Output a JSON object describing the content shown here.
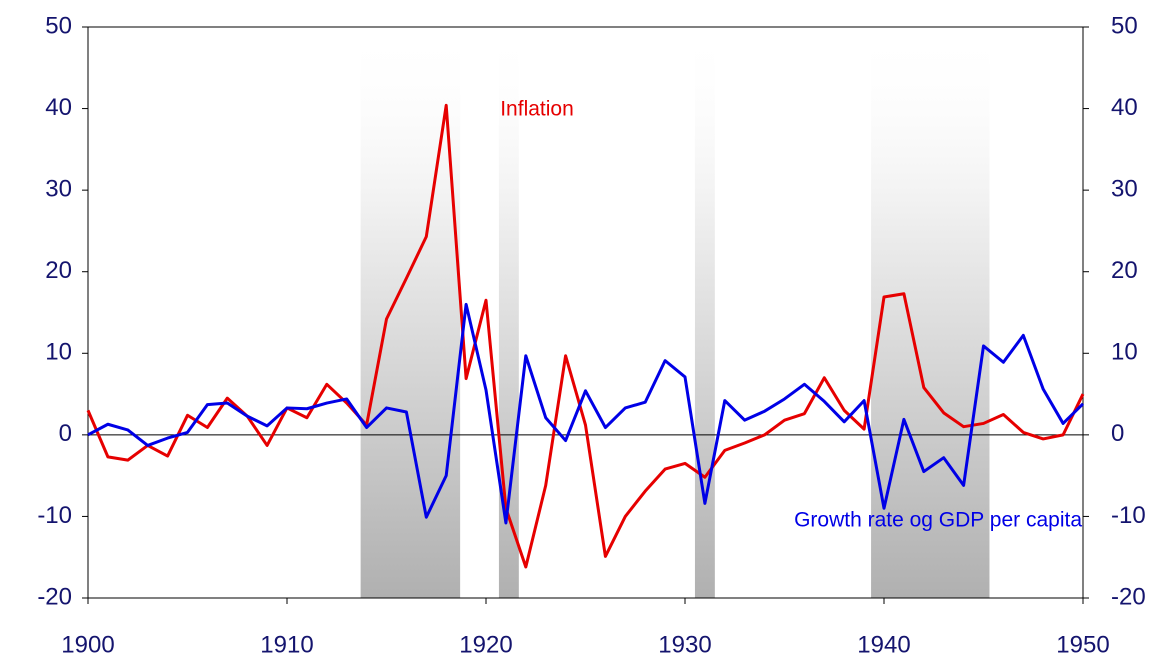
{
  "chart_data": {
    "type": "line",
    "x": [
      1900,
      1901,
      1902,
      1903,
      1904,
      1905,
      1906,
      1907,
      1908,
      1909,
      1910,
      1911,
      1912,
      1913,
      1914,
      1915,
      1916,
      1917,
      1918,
      1919,
      1920,
      1921,
      1922,
      1923,
      1924,
      1925,
      1926,
      1927,
      1928,
      1929,
      1930,
      1931,
      1932,
      1933,
      1934,
      1935,
      1936,
      1937,
      1938,
      1939,
      1940,
      1941,
      1942,
      1943,
      1944,
      1945,
      1946,
      1947,
      1948,
      1949,
      1950
    ],
    "series": [
      {
        "name": "Inflation",
        "color": "#e60000",
        "values": [
          3,
          -2.7,
          -3.1,
          -1.3,
          -2.6,
          2.4,
          0.9,
          4.5,
          2.3,
          -1.3,
          3.3,
          2.1,
          6.2,
          3.9,
          1.2,
          14.2,
          19.2,
          24.3,
          40.4,
          6.9,
          16.5,
          -9,
          -16.2,
          -6.2,
          9.7,
          1.2,
          -14.9,
          -10,
          -6.9,
          -4.2,
          -3.5,
          -5.2,
          -1.9,
          -1,
          0,
          1.8,
          2.6,
          7,
          3,
          0.7,
          16.9,
          17.3,
          5.8,
          2.7,
          1,
          1.4,
          2.5,
          0.3,
          -0.5,
          0,
          5
        ]
      },
      {
        "name": "Growth rate og GDP per capita",
        "color": "#0000e6",
        "values": [
          0,
          1.3,
          0.6,
          -1.3,
          -0.4,
          0.3,
          3.7,
          3.9,
          2.3,
          1.1,
          3.3,
          3.2,
          3.9,
          4.4,
          0.9,
          3.3,
          2.8,
          -10.1,
          -5,
          16,
          5.5,
          -10.8,
          9.7,
          2.1,
          -0.7,
          5.4,
          0.9,
          3.3,
          4,
          9.1,
          7.1,
          -8.4,
          4.2,
          1.8,
          2.9,
          4.4,
          6.2,
          4.1,
          1.6,
          4.2,
          -9,
          1.9,
          -4.5,
          -2.8,
          -6.2,
          10.9,
          8.9,
          12.2,
          5.6,
          1.4,
          3.8
        ]
      }
    ],
    "shaded_periods": [
      [
        1913.7,
        1918.7
      ],
      [
        1920.65,
        1921.65
      ],
      [
        1930.5,
        1931.5
      ],
      [
        1939.35,
        1945.3
      ]
    ],
    "xlim": [
      1900,
      1950
    ],
    "xticks": [
      1900,
      1910,
      1920,
      1930,
      1940,
      1950
    ],
    "ylim": [
      -20,
      50
    ],
    "yticks": [
      -20,
      -10,
      0,
      10,
      20,
      30,
      40,
      50
    ],
    "y2lim": [
      -20,
      50
    ],
    "y2ticks": [
      -20,
      -10,
      0,
      10,
      20,
      30,
      40,
      50
    ]
  }
}
